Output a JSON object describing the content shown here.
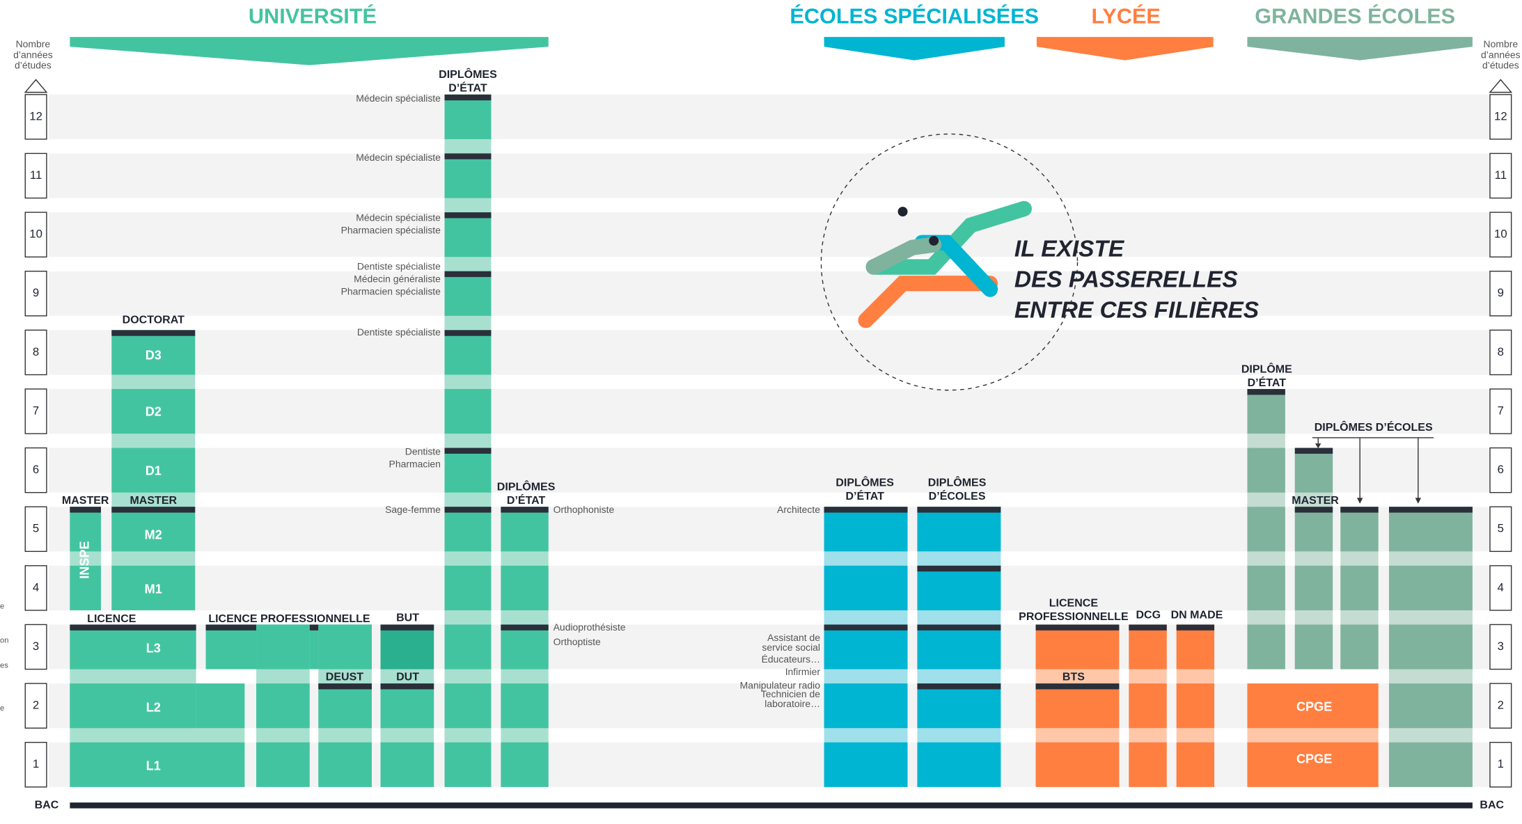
{
  "headers": [
    "UNIVERSITÉ",
    "ÉCOLES SPÉCIALISÉES",
    "LYCÉE",
    "GRANDES ÉCOLES"
  ],
  "axis": {
    "title": [
      "Nombre",
      "d’années",
      "d’études"
    ],
    "years": [
      "1",
      "2",
      "3",
      "4",
      "5",
      "6",
      "7",
      "8",
      "9",
      "10",
      "11",
      "12"
    ],
    "baseline": "BAC"
  },
  "column_titles": [
    [
      "DIPLÔMES",
      "D’ÉTAT"
    ],
    [
      "DOCTORAT"
    ],
    [
      "MASTER"
    ],
    [
      "MASTER"
    ],
    [
      "LICENCE"
    ],
    [
      "LICENCE PROFESSIONNELLE"
    ],
    [
      "BUT"
    ],
    [
      "DEUST"
    ],
    [
      "DUT"
    ],
    [
      "DIPLÔMES",
      "D’ÉTAT"
    ],
    [
      "DIPLÔMES",
      "D’ÉTAT"
    ],
    [
      "DIPLÔMES",
      "D’ÉCOLES"
    ],
    [
      "LICENCE",
      "PROFESSIONNELLE"
    ],
    [
      "DCG"
    ],
    [
      "DN MADE"
    ],
    [
      "BTS"
    ],
    [
      "DIPLÔME",
      "D’ÉTAT"
    ],
    [
      "DIPLÔMES D’ÉCOLES"
    ],
    [
      "MASTER"
    ]
  ],
  "block_labels": [
    "D3",
    "D2",
    "D1",
    "M2",
    "M1",
    "L3",
    "L2",
    "L1",
    "INSPE",
    "CPGE",
    "CPGE"
  ],
  "side_notes": [
    "Médecin spécialiste",
    "Médecin spécialiste",
    "Médecin spécialiste",
    "Pharmacien spécialiste",
    "Dentiste spécialiste",
    "Médecin généraliste",
    "Pharmacien spécialiste",
    "Dentiste spécialiste",
    "Dentiste",
    "Pharmacien",
    "Sage-femme",
    "Orthophoniste",
    "Audioprothésiste",
    "Orthoptiste",
    "Architecte",
    "Assistant de",
    "service social",
    "Éducateurs…",
    "Infirmier",
    "Manipulateur radio",
    "Technicien de",
    "laboratoire…",
    "e",
    "on",
    "es",
    "e"
  ],
  "passerelles": [
    "IL EXISTE",
    "DES PASSERELLES",
    "ENTRE CES FILIÈRES"
  ]
}
